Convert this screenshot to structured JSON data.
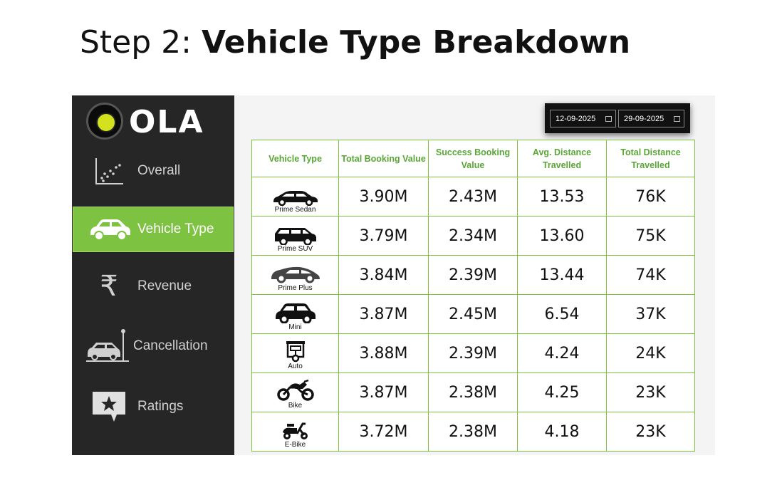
{
  "slide": {
    "step": "Step 2:",
    "title": "Vehicle Type Breakdown"
  },
  "logo": {
    "text": "OLA"
  },
  "sidebar": {
    "items": [
      {
        "label": "Overall",
        "icon": "scatter-chart-icon",
        "active": false
      },
      {
        "label": "Vehicle Type",
        "icon": "car-icon",
        "active": true
      },
      {
        "label": "Revenue",
        "icon": "rupee-icon",
        "active": false
      },
      {
        "label": "Cancellation",
        "icon": "car-crash-icon",
        "active": false
      },
      {
        "label": "Ratings",
        "icon": "star-chat-icon",
        "active": false
      }
    ]
  },
  "date_range": {
    "start": "12-09-2025",
    "end": "29-09-2025"
  },
  "table": {
    "headers": [
      "Vehicle Type",
      "Total Booking Value",
      "Success Booking Value",
      "Avg. Distance Travelled",
      "Total Distance Travelled"
    ],
    "rows": [
      {
        "type": "Prime Sedan",
        "icon": "sedan-icon",
        "total_booking": "3.90M",
        "success_booking": "2.43M",
        "avg_distance": "13.53",
        "total_distance": "76K"
      },
      {
        "type": "Prime SUV",
        "icon": "suv-icon",
        "total_booking": "3.79M",
        "success_booking": "2.34M",
        "avg_distance": "13.60",
        "total_distance": "75K"
      },
      {
        "type": "Prime Plus",
        "icon": "hatchback-icon",
        "total_booking": "3.84M",
        "success_booking": "2.39M",
        "avg_distance": "13.44",
        "total_distance": "74K"
      },
      {
        "type": "Mini",
        "icon": "mini-car-icon",
        "total_booking": "3.87M",
        "success_booking": "2.45M",
        "avg_distance": "6.54",
        "total_distance": "37K"
      },
      {
        "type": "Auto",
        "icon": "auto-rickshaw-icon",
        "total_booking": "3.88M",
        "success_booking": "2.39M",
        "avg_distance": "4.24",
        "total_distance": "24K"
      },
      {
        "type": "Bike",
        "icon": "motorbike-icon",
        "total_booking": "3.87M",
        "success_booking": "2.38M",
        "avg_distance": "4.25",
        "total_distance": "23K"
      },
      {
        "type": "E-Bike",
        "icon": "scooter-icon",
        "total_booking": "3.72M",
        "success_booking": "2.38M",
        "avg_distance": "4.18",
        "total_distance": "23K"
      }
    ]
  },
  "colors": {
    "sidebar_bg": "#262626",
    "accent_green": "#7ec242",
    "header_green": "#5aa636",
    "logo_yellow": "#d4e21d"
  }
}
